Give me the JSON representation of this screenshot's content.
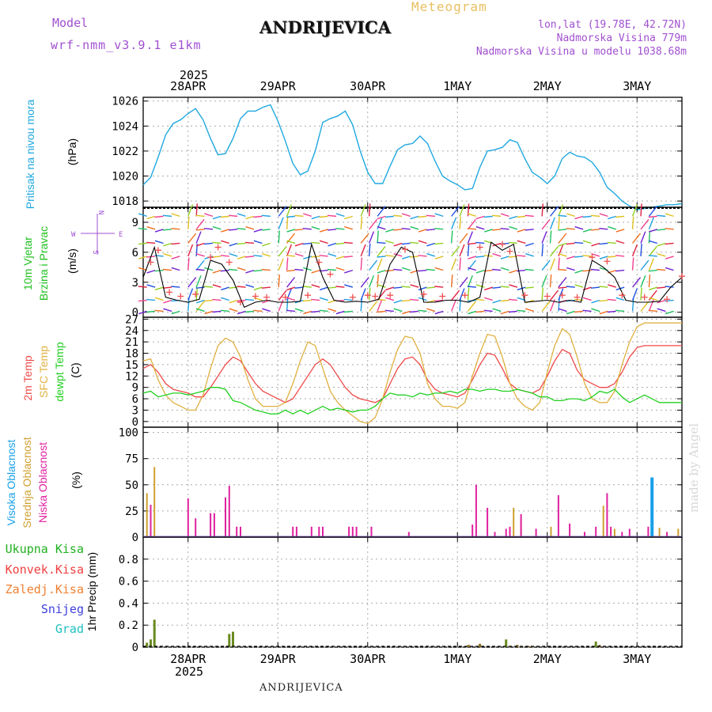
{
  "header": {
    "model_label": "Model",
    "model_name": "wrf-nmm_v3.9.1 e1km",
    "station": "ANDRIJEVICA",
    "meteogram_label": "Meteogram",
    "lonlat": "lon,lat (19.78E, 42.72N)",
    "altitude": "Nadmorska Visina 779m",
    "model_altitude": "Nadmorska Visina u modelu 1038.68m"
  },
  "footer": {
    "station": "ANDRIJEVICA",
    "credit": "made by Angel"
  },
  "colors": {
    "pressure": "#1fa8e0",
    "t2m": "#f04848",
    "sfc": "#e0b040",
    "dew": "#20d020",
    "high": "#18a0e8",
    "mid": "#d0a030",
    "low": "#e020a0",
    "total": "#20b020",
    "conv": "#f04040",
    "frozen": "#f08030",
    "snow": "#4040e0",
    "hail": "#20c0c0"
  },
  "chart_data": [
    {
      "type": "line",
      "panel": "pressure",
      "title": "",
      "ylabel_name": "Pritisak na nivou mora",
      "ylabel_unit": "(hPa)",
      "year_label": "2025",
      "x_labels": [
        "28APR",
        "29APR",
        "30APR",
        "1MAY",
        "2MAY",
        "3MAY"
      ],
      "x_range": [
        0,
        144
      ],
      "x_ticks": [
        12,
        36,
        60,
        84,
        108,
        132
      ],
      "ylim": [
        1017.5,
        1026.3
      ],
      "yticks": [
        1018,
        1020,
        1022,
        1024,
        1026
      ],
      "grid": true,
      "x": [
        0,
        2,
        4,
        6,
        8,
        10,
        12,
        14,
        16,
        18,
        20,
        22,
        24,
        26,
        28,
        30,
        32,
        34,
        36,
        38,
        40,
        42,
        44,
        46,
        48,
        50,
        52,
        54,
        56,
        58,
        60,
        62,
        64,
        66,
        68,
        70,
        72,
        74,
        76,
        78,
        80,
        82,
        84,
        86,
        88,
        90,
        92,
        94,
        96,
        98,
        100,
        102,
        104,
        106,
        108,
        110,
        112,
        114,
        116,
        118,
        120,
        122,
        124,
        126,
        128,
        130,
        132,
        134,
        136,
        138,
        140,
        142,
        144
      ],
      "values": [
        1019.3,
        1019.9,
        1021.5,
        1023.3,
        1024.2,
        1024.5,
        1025.0,
        1025.4,
        1024.5,
        1023.0,
        1021.7,
        1021.8,
        1023.0,
        1024.6,
        1025.2,
        1025.2,
        1025.5,
        1025.7,
        1024.4,
        1022.8,
        1021.0,
        1020.1,
        1020.4,
        1022.0,
        1024.3,
        1024.6,
        1024.8,
        1025.2,
        1024.1,
        1022.0,
        1020.3,
        1019.4,
        1019.4,
        1020.8,
        1022.1,
        1022.5,
        1022.6,
        1023.2,
        1022.6,
        1021.2,
        1020.0,
        1019.6,
        1019.3,
        1018.9,
        1019.0,
        1020.7,
        1022.0,
        1022.1,
        1022.3,
        1022.9,
        1022.7,
        1021.4,
        1020.3,
        1019.9,
        1019.4,
        1020.0,
        1021.4,
        1021.9,
        1021.6,
        1021.5,
        1021.1,
        1020.3,
        1019.1,
        1018.6,
        1018.0,
        1017.6,
        1017.3,
        1017.4,
        1017.5,
        1017.6,
        1017.7,
        1017.7,
        1017.8
      ],
      "series": [
        {
          "name": "Pritisak",
          "values_ref": "values"
        }
      ]
    },
    {
      "type": "scatter",
      "panel": "wind",
      "ylabel_name1": "10m Vjetar",
      "ylabel_name2": "Brzina i Pravac",
      "ylabel_unit": "(m/s)",
      "compass": {
        "n": "N",
        "s": "S",
        "w": "W",
        "e": "E"
      },
      "ylim": [
        -0.5,
        10.5
      ],
      "yticks": [
        0,
        3,
        6,
        9
      ],
      "x": [
        0,
        3,
        6,
        9,
        12,
        15,
        18,
        21,
        24,
        27,
        30,
        33,
        36,
        39,
        42,
        45,
        48,
        51,
        54,
        57,
        60,
        63,
        66,
        69,
        72,
        75,
        78,
        81,
        84,
        87,
        90,
        93,
        96,
        99,
        102,
        105,
        108,
        111,
        114,
        117,
        120,
        123,
        126,
        129,
        132,
        135,
        138,
        141,
        144
      ],
      "speed": [
        3.5,
        6.5,
        1.5,
        1.2,
        1.0,
        1.3,
        5.2,
        4.8,
        3.2,
        0.5,
        1.0,
        1.2,
        1.0,
        1.0,
        1.1,
        6.8,
        3.5,
        1.2,
        1.0,
        1.1,
        1.0,
        1.3,
        4.8,
        6.5,
        6.0,
        1.0,
        1.0,
        1.2,
        1.2,
        1.0,
        1.5,
        7.0,
        6.2,
        6.8,
        1.0,
        1.1,
        1.2,
        1.0,
        1.2,
        1.0,
        5.2,
        4.5,
        3.5,
        1.2,
        1.0,
        1.0,
        1.1,
        2.5,
        3.5
      ],
      "gust_x": [
        2,
        4,
        7,
        10,
        14,
        18,
        20,
        23,
        26,
        30,
        33,
        38,
        44,
        47,
        50,
        56,
        60,
        62,
        66,
        70,
        75,
        80,
        86,
        90,
        96,
        98,
        102,
        108,
        112,
        116,
        120,
        124,
        128,
        134,
        140,
        144
      ],
      "gust": [
        5.0,
        6.2,
        2.0,
        1.6,
        1.8,
        5.5,
        6.5,
        5.0,
        1.0,
        1.6,
        1.5,
        1.5,
        1.7,
        5.0,
        3.8,
        1.5,
        1.7,
        1.6,
        1.7,
        6.3,
        1.8,
        1.6,
        1.7,
        6.5,
        6.8,
        6.1,
        1.7,
        1.6,
        1.7,
        1.5,
        5.5,
        5.1,
        1.7,
        1.5,
        1.3,
        3.6
      ]
    },
    {
      "type": "line",
      "panel": "temperature",
      "ylabel_names": [
        "2m Temp",
        "SFC Temp",
        "dewpt Temp"
      ],
      "ylabel_unit": "(C)",
      "ylim": [
        -1.5,
        27.5
      ],
      "yticks": [
        0,
        3,
        6,
        9,
        12,
        15,
        18,
        21,
        24,
        27
      ],
      "x": [
        0,
        2,
        4,
        6,
        8,
        10,
        12,
        14,
        16,
        18,
        20,
        22,
        24,
        26,
        28,
        30,
        32,
        34,
        36,
        38,
        40,
        42,
        44,
        46,
        48,
        50,
        52,
        54,
        56,
        58,
        60,
        62,
        64,
        66,
        68,
        70,
        72,
        74,
        76,
        78,
        80,
        82,
        84,
        86,
        88,
        90,
        92,
        94,
        96,
        98,
        100,
        102,
        104,
        106,
        108,
        110,
        112,
        114,
        116,
        118,
        120,
        122,
        124,
        126,
        128,
        130,
        132,
        134,
        136,
        138,
        140,
        142,
        144
      ],
      "series": [
        {
          "name": "2m Temp",
          "values": [
            14,
            15,
            13,
            10,
            8.5,
            8,
            7.5,
            6.5,
            6.5,
            9,
            12,
            15,
            17,
            16,
            13,
            10,
            8,
            7,
            6,
            5,
            6,
            9,
            12,
            15,
            16.5,
            15,
            12,
            9,
            7,
            6,
            5.5,
            5,
            6,
            10,
            14,
            16.5,
            17,
            15,
            11,
            8.5,
            7.5,
            7,
            6.5,
            7.5,
            11,
            15,
            18,
            17.5,
            14,
            10,
            8.5,
            8,
            7.5,
            8.5,
            12,
            16,
            19,
            18,
            13.5,
            11,
            10,
            9,
            9,
            10,
            13,
            17,
            19.5,
            20,
            20,
            20,
            20,
            20,
            20
          ]
        },
        {
          "name": "SFC Temp",
          "values": [
            16,
            16.5,
            11,
            7,
            5,
            4,
            3,
            3,
            7,
            14,
            20,
            22,
            21,
            17,
            11,
            6,
            4,
            4,
            4,
            5,
            10,
            16,
            21,
            20,
            14,
            8,
            5,
            3,
            1.5,
            0,
            -0.5,
            1,
            6,
            13,
            19,
            22.5,
            22,
            18,
            10,
            6,
            4,
            4,
            3.5,
            5,
            12,
            18,
            23,
            22.5,
            17,
            10,
            6,
            4,
            3,
            5,
            13,
            20,
            24.5,
            23,
            17,
            10,
            6,
            5,
            5,
            8,
            15,
            21,
            25,
            26,
            26,
            26,
            26,
            26,
            26
          ]
        },
        {
          "name": "dewpt Temp",
          "values": [
            7.5,
            8,
            6.5,
            7,
            7.5,
            7.5,
            7,
            7.5,
            8,
            9,
            9,
            8.5,
            5.5,
            5,
            4,
            3,
            2.5,
            2,
            2,
            3,
            2,
            3,
            2,
            3,
            4,
            3,
            3.5,
            3,
            2.5,
            3,
            3,
            4,
            6,
            7.5,
            7,
            7,
            6.5,
            7.5,
            7,
            7.5,
            7.5,
            8,
            7.5,
            8.5,
            8.5,
            8,
            8.5,
            8.5,
            8,
            8,
            8.5,
            8,
            7.5,
            6.5,
            6.5,
            5.5,
            5.5,
            6,
            6,
            5.5,
            6.5,
            8,
            7.5,
            8.5,
            6.5,
            5,
            6,
            7,
            6,
            5,
            5,
            5,
            5
          ]
        }
      ]
    },
    {
      "type": "bar",
      "panel": "clouds",
      "ylabel_names": [
        "Visoka Oblacnost",
        "Srednja Oblacnost",
        "Niska Oblacnost"
      ],
      "ylabel_unit": "(%)",
      "ylim": [
        0,
        105
      ],
      "yticks": [
        0,
        25,
        50,
        75,
        100
      ],
      "series": [
        {
          "name": "Visoka Oblacnost",
          "x": [
            136
          ],
          "values": [
            57
          ]
        },
        {
          "name": "Srednja Oblacnost",
          "x": [
            1,
            3,
            99,
            101,
            109,
            123,
            126,
            138,
            143
          ],
          "values": [
            42,
            67,
            28,
            17,
            10,
            30,
            8,
            9,
            8
          ]
        },
        {
          "name": "Niska Oblacnost",
          "x": [
            2,
            12,
            14,
            18,
            19,
            22,
            23,
            25,
            26,
            40,
            41,
            45,
            47,
            48,
            55,
            56,
            57,
            61,
            71,
            88,
            89,
            92,
            94,
            97,
            98,
            101,
            105,
            111,
            114,
            118,
            121,
            124,
            125,
            128,
            130,
            135,
            140
          ],
          "values": [
            31,
            37,
            18,
            23,
            23,
            38,
            49,
            10,
            10,
            10,
            10,
            10,
            10,
            10,
            10,
            10,
            10,
            10,
            5,
            12,
            50,
            28,
            5,
            8,
            10,
            22,
            8,
            40,
            13,
            5,
            10,
            42,
            10,
            5,
            8,
            10,
            5
          ]
        }
      ]
    },
    {
      "type": "bar",
      "panel": "precip",
      "ylabel_names": [
        "Ukupna Kisa",
        "Konvek.Kisa",
        "Zaledj.Kisa",
        "Snijeg",
        "Grad"
      ],
      "ylabel_unit": "1hr Precip (mm)",
      "ylim": [
        0,
        1.0
      ],
      "yticks": [
        0,
        0.2,
        0.4,
        0.6,
        0.8
      ],
      "series": [
        {
          "name": "Ukupna Kisa",
          "x": [
            1,
            2,
            3,
            23,
            24,
            87,
            90,
            97,
            98,
            100,
            101,
            103,
            104,
            121,
            122
          ],
          "values": [
            0.04,
            0.07,
            0.25,
            0.12,
            0.14,
            0.02,
            0.03,
            0.07,
            0.01,
            0.02,
            0.01,
            0.01,
            0.01,
            0.05,
            0.02
          ]
        }
      ]
    }
  ]
}
